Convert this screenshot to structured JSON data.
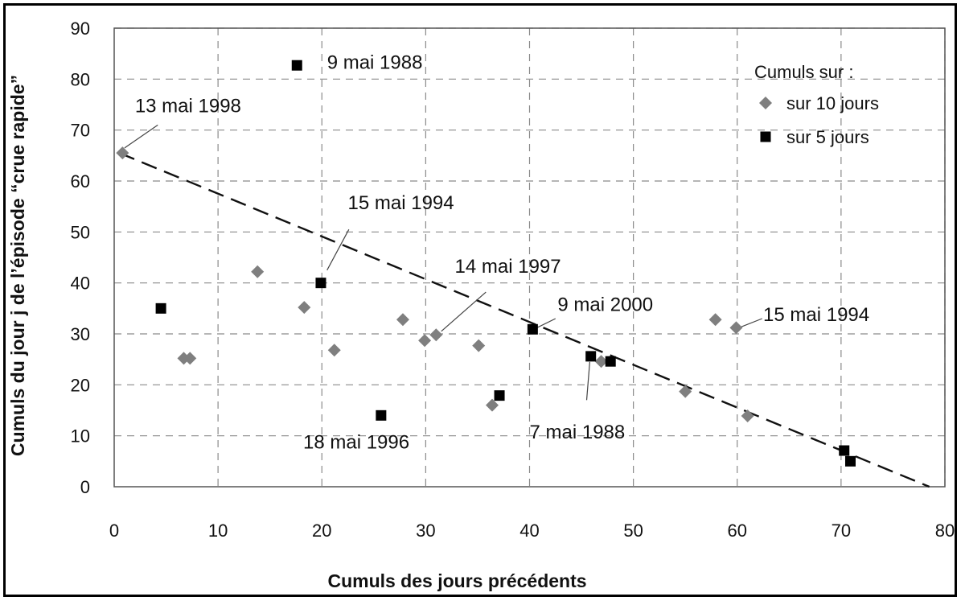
{
  "chart_data": {
    "type": "scatter",
    "xlabel": "Cumuls des jours précédents",
    "ylabel": "Cumuls du jour j de l’épisode “crue rapide”",
    "xlim": [
      0,
      80
    ],
    "ylim": [
      0,
      90
    ],
    "xticks": [
      0,
      10,
      20,
      30,
      40,
      50,
      60,
      70,
      80
    ],
    "yticks": [
      0,
      10,
      20,
      30,
      40,
      50,
      60,
      70,
      80,
      90
    ],
    "grid": true,
    "legend": {
      "title": "Cumuls sur :",
      "placement": "top-right"
    },
    "series": [
      {
        "name": "sur 10 jours",
        "marker": "diamond",
        "color": "#7f7f7f",
        "points": [
          {
            "x": 0.8,
            "y": 65.5
          },
          {
            "x": 6.7,
            "y": 25.2
          },
          {
            "x": 7.3,
            "y": 25.2
          },
          {
            "x": 13.8,
            "y": 42.2
          },
          {
            "x": 18.3,
            "y": 35.2
          },
          {
            "x": 21.2,
            "y": 26.8
          },
          {
            "x": 27.8,
            "y": 32.8
          },
          {
            "x": 29.9,
            "y": 28.7
          },
          {
            "x": 31.0,
            "y": 29.8
          },
          {
            "x": 35.1,
            "y": 27.7
          },
          {
            "x": 36.4,
            "y": 16.0
          },
          {
            "x": 46.9,
            "y": 24.6
          },
          {
            "x": 55.0,
            "y": 18.7
          },
          {
            "x": 57.9,
            "y": 32.8
          },
          {
            "x": 59.9,
            "y": 31.2
          },
          {
            "x": 61.0,
            "y": 13.9
          }
        ]
      },
      {
        "name": "sur 5 jours",
        "marker": "square",
        "color": "#000000",
        "points": [
          {
            "x": 4.5,
            "y": 35.0
          },
          {
            "x": 17.6,
            "y": 82.7
          },
          {
            "x": 19.9,
            "y": 40.0
          },
          {
            "x": 25.7,
            "y": 14.0
          },
          {
            "x": 37.1,
            "y": 17.9
          },
          {
            "x": 40.3,
            "y": 30.9
          },
          {
            "x": 45.9,
            "y": 25.6
          },
          {
            "x": 47.8,
            "y": 24.6
          },
          {
            "x": 70.3,
            "y": 7.1
          },
          {
            "x": 70.9,
            "y": 5.0
          }
        ]
      }
    ],
    "trendline": {
      "style": "dashed",
      "from": {
        "x": 0.5,
        "y": 65.5
      },
      "to": {
        "x": 78.5,
        "y": 0
      }
    },
    "annotations": [
      {
        "text": "9 mai 1988",
        "x": 20.5,
        "y": 82.0,
        "leader": null
      },
      {
        "text": "13 mai 1998",
        "x": 2.0,
        "y": 73.5,
        "leader": {
          "from": [
            4.2,
            71.0
          ],
          "to": [
            1.0,
            66.5
          ]
        }
      },
      {
        "text": "15 mai 1994",
        "x": 22.5,
        "y": 54.5,
        "leader": {
          "from": [
            22.6,
            50.5
          ],
          "to": [
            20.5,
            42.5
          ]
        }
      },
      {
        "text": "14 mai 1997",
        "x": 32.8,
        "y": 42.0,
        "leader": {
          "from": [
            35.8,
            38.2
          ],
          "to": [
            31.5,
            30.5
          ]
        }
      },
      {
        "text": "9 mai 2000",
        "x": 42.7,
        "y": 34.5,
        "leader": {
          "from": [
            42.5,
            33.0
          ],
          "to": [
            40.7,
            31.2
          ]
        }
      },
      {
        "text": "15 mai 1994",
        "x": 62.5,
        "y": 32.5,
        "leader": {
          "from": [
            62.4,
            33.0
          ],
          "to": [
            60.4,
            31.4
          ]
        }
      },
      {
        "text": "18 mai 1996",
        "x": 18.2,
        "y": 7.5,
        "leader": null
      },
      {
        "text": "7 mai 1988",
        "x": 40.0,
        "y": 9.5,
        "leader": {
          "from": [
            45.5,
            17.0
          ],
          "to": [
            45.8,
            24.5
          ]
        }
      }
    ]
  }
}
